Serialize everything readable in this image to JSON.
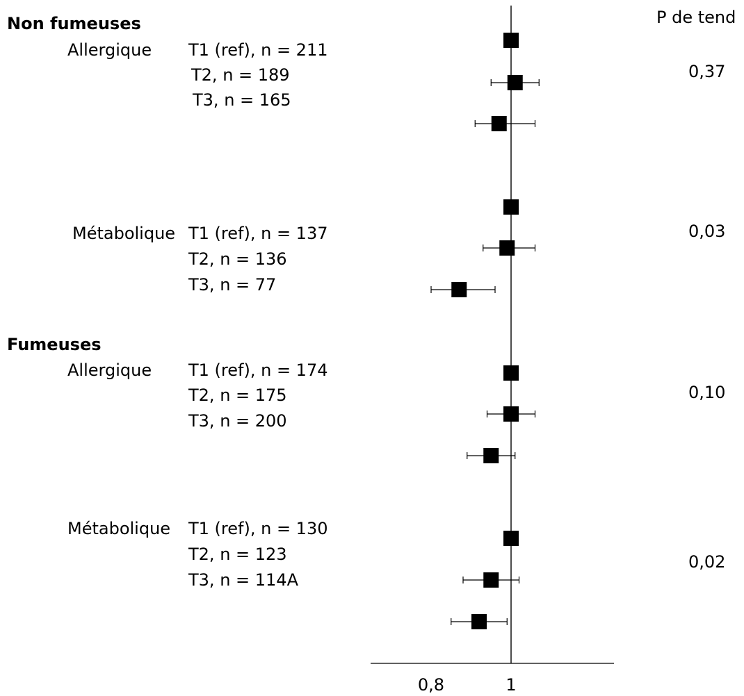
{
  "header": {
    "p_label": "P de tend"
  },
  "groups": [
    {
      "label": "Non fumeuses",
      "subgroups": [
        {
          "label": "Allergique",
          "p_value": "0,37",
          "rows": [
            "T1 (ref), n = 211",
            "T2, n = 189",
            "T3, n = 165"
          ]
        },
        {
          "label": "Métabolique",
          "p_value": "0,03",
          "rows": [
            "T1 (ref), n = 137",
            "T2, n = 136",
            "T3, n = 77"
          ]
        }
      ]
    },
    {
      "label": "Fumeuses",
      "subgroups": [
        {
          "label": "Allergique",
          "p_value": "0,10",
          "rows": [
            "T1 (ref), n = 174",
            "T2, n = 175",
            "T3, n = 200"
          ]
        },
        {
          "label": "Métabolique",
          "p_value": "0,02",
          "rows": [
            "T1 (ref), n = 130",
            "T2, n = 123",
            "T3, n = 114A"
          ]
        }
      ]
    }
  ],
  "chart_data": {
    "type": "scatter",
    "title": "",
    "xlabel": "",
    "ylabel": "",
    "xlim": [
      0.6,
      1.18
    ],
    "reference_line": 1,
    "x_ticks": [
      0.8,
      1
    ],
    "x_tick_labels": [
      "0,8",
      "1"
    ],
    "marker_color": "#000000",
    "series": [
      {
        "name": "Non fumeuses – Allergique",
        "points": [
          {
            "estimate": 1.0,
            "ci": null
          },
          {
            "estimate": 1.01,
            "ci": [
              0.95,
              1.07
            ]
          },
          {
            "estimate": 0.97,
            "ci": [
              0.91,
              1.06
            ]
          }
        ]
      },
      {
        "name": "Non fumeuses – Métabolique",
        "points": [
          {
            "estimate": 1.0,
            "ci": null
          },
          {
            "estimate": 0.99,
            "ci": [
              0.93,
              1.06
            ]
          },
          {
            "estimate": 0.87,
            "ci": [
              0.8,
              0.96
            ]
          }
        ]
      },
      {
        "name": "Fumeuses – Allergique",
        "points": [
          {
            "estimate": 1.0,
            "ci": null
          },
          {
            "estimate": 1.0,
            "ci": [
              0.94,
              1.06
            ]
          },
          {
            "estimate": 0.95,
            "ci": [
              0.89,
              1.01
            ]
          }
        ]
      },
      {
        "name": "Fumeuses – Métabolique",
        "points": [
          {
            "estimate": 1.0,
            "ci": null
          },
          {
            "estimate": 0.95,
            "ci": [
              0.88,
              1.02
            ]
          },
          {
            "estimate": 0.92,
            "ci": [
              0.85,
              0.99
            ]
          }
        ]
      }
    ]
  }
}
